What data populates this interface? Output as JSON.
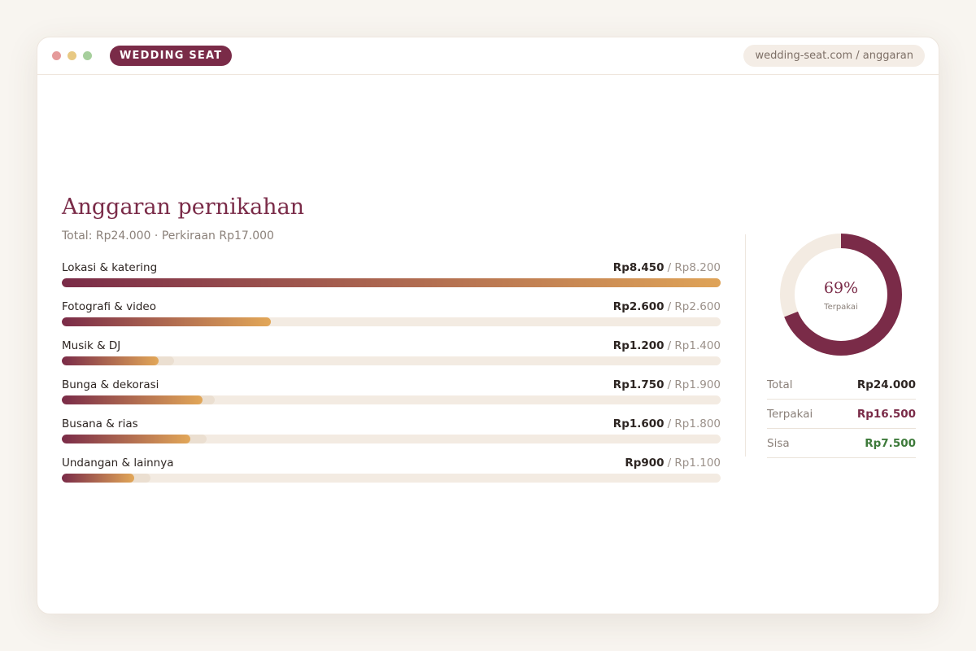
{
  "browser": {
    "brand": "WEDDING SEAT",
    "url": "wedding-seat.com / anggaran"
  },
  "budget": {
    "title": "Anggaran pernikahan",
    "subtitle": "Total: Rp24.000 · Perkiraan Rp17.000",
    "items": [
      {
        "name": "Lokasi & katering",
        "spent": 8450,
        "spent_label": "Rp8.450",
        "estimate": 8200,
        "estimate_label": "/ Rp8.200"
      },
      {
        "name": "Fotografi & video",
        "spent": 2600,
        "spent_label": "Rp2.600",
        "estimate": 2600,
        "estimate_label": "/ Rp2.600"
      },
      {
        "name": "Musik & DJ",
        "spent": 1200,
        "spent_label": "Rp1.200",
        "estimate": 1400,
        "estimate_label": "/ Rp1.400"
      },
      {
        "name": "Bunga & dekorasi",
        "spent": 1750,
        "spent_label": "Rp1.750",
        "estimate": 1900,
        "estimate_label": "/ Rp1.900"
      },
      {
        "name": "Busana & rias",
        "spent": 1600,
        "spent_label": "Rp1.600",
        "estimate": 1800,
        "estimate_label": "/ Rp1.800"
      },
      {
        "name": "Undangan & lainnya",
        "spent": 900,
        "spent_label": "Rp900",
        "estimate": 1100,
        "estimate_label": "/ Rp1.100"
      }
    ]
  },
  "summary": {
    "percent": 69,
    "percent_label": "69%",
    "percent_caption": "Terpakai",
    "rows": [
      {
        "label": "Total",
        "value": "Rp24.000",
        "color": "#2d2522"
      },
      {
        "label": "Terpakai",
        "value": "Rp16.500",
        "color": "#7a2b48"
      },
      {
        "label": "Sisa",
        "value": "Rp7.500",
        "color": "#3d7a3a"
      }
    ]
  }
}
